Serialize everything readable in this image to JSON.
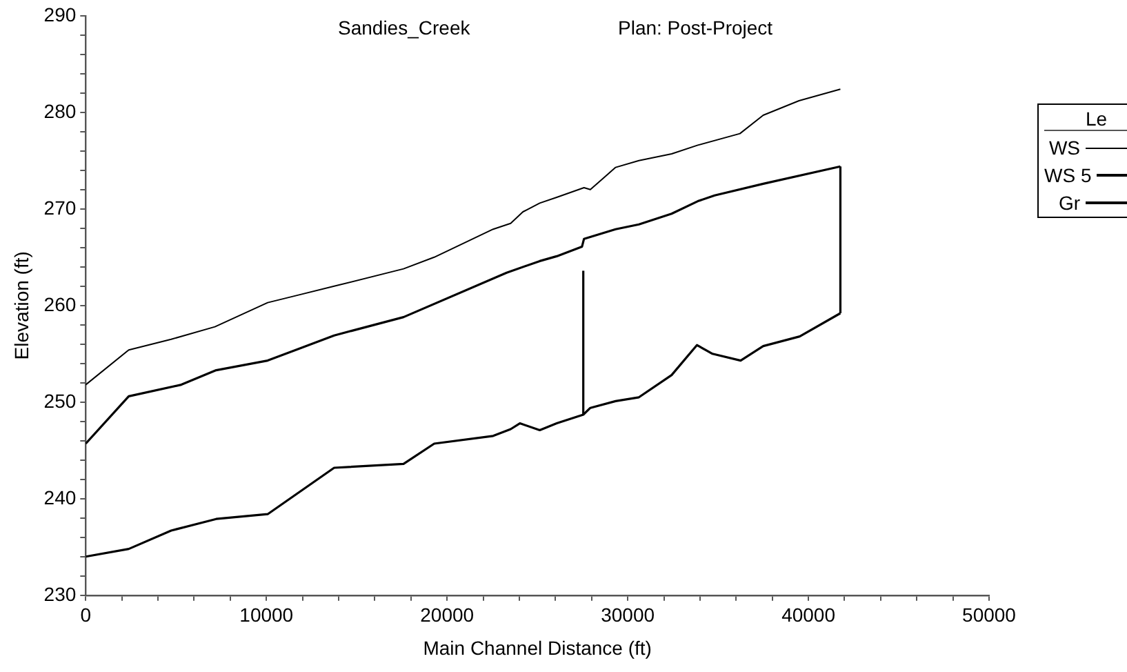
{
  "chart_data": {
    "type": "line",
    "title": "Sandies_Creek",
    "subtitle": "Plan: Post-Project",
    "xlabel": "Main Channel Distance (ft)",
    "ylabel": "Elevation (ft)",
    "legend_title": "Le",
    "legend": "right",
    "marker": "none",
    "line_style": "solid",
    "xlim": [
      0,
      50000
    ],
    "ylim": [
      230,
      290
    ],
    "xticks": [
      0,
      {
        "value": 2000,
        "label": null
      },
      {
        "value": 4000,
        "label": null
      },
      {
        "value": 6000,
        "label": null
      },
      {
        "value": 8000,
        "label": null
      },
      10000,
      {
        "value": 12000,
        "label": null
      },
      {
        "value": 14000,
        "label": null
      },
      {
        "value": 16000,
        "label": null
      },
      {
        "value": 18000,
        "label": null
      },
      20000,
      {
        "value": 22000,
        "label": null
      },
      {
        "value": 24000,
        "label": null
      },
      {
        "value": 26000,
        "label": null
      },
      {
        "value": 28000,
        "label": null
      },
      30000,
      {
        "value": 32000,
        "label": null
      },
      {
        "value": 34000,
        "label": null
      },
      {
        "value": 36000,
        "label": null
      },
      {
        "value": 38000,
        "label": null
      },
      40000,
      {
        "value": 42000,
        "label": null
      },
      {
        "value": 44000,
        "label": null
      },
      {
        "value": 46000,
        "label": null
      },
      {
        "value": 48000,
        "label": null
      },
      50000
    ],
    "yticks": [
      230,
      {
        "value": 232,
        "label": null
      },
      {
        "value": 234,
        "label": null
      },
      {
        "value": 236,
        "label": null
      },
      {
        "value": 238,
        "label": null
      },
      240,
      {
        "value": 242,
        "label": null
      },
      {
        "value": 244,
        "label": null
      },
      {
        "value": 246,
        "label": null
      },
      {
        "value": 248,
        "label": null
      },
      250,
      {
        "value": 252,
        "label": null
      },
      {
        "value": 254,
        "label": null
      },
      {
        "value": 256,
        "label": null
      },
      {
        "value": 258,
        "label": null
      },
      260,
      {
        "value": 262,
        "label": null
      },
      {
        "value": 264,
        "label": null
      },
      {
        "value": 266,
        "label": null
      },
      {
        "value": 268,
        "label": null
      },
      270,
      {
        "value": 272,
        "label": null
      },
      {
        "value": 274,
        "label": null
      },
      {
        "value": 276,
        "label": null
      },
      {
        "value": 278,
        "label": null
      },
      280,
      {
        "value": 282,
        "label": null
      },
      {
        "value": 284,
        "label": null
      },
      {
        "value": 286,
        "label": null
      },
      {
        "value": 288,
        "label": null
      },
      290
    ],
    "series": [
      {
        "name": "WS",
        "color": "#000000",
        "x": [
          0,
          2380,
          4730,
          7150,
          10070,
          11810,
          13750,
          17590,
          19290,
          22550,
          23520,
          24200,
          25130,
          26070,
          27580,
          27930,
          29330,
          30620,
          32430,
          33880,
          36210,
          37500,
          39480,
          41770
        ],
        "values": [
          251.8,
          255.4,
          256.5,
          257.8,
          260.3,
          261.1,
          262.0,
          263.8,
          265.0,
          267.9,
          268.5,
          269.7,
          270.6,
          271.2,
          272.2,
          272.0,
          274.3,
          275.0,
          275.7,
          276.6,
          277.8,
          279.7,
          281.2,
          282.4
        ]
      },
      {
        "name": "WS 5",
        "color": "#000000",
        "x": [
          0,
          2380,
          5290,
          7220,
          10070,
          13750,
          17590,
          23300,
          25130,
          26070,
          27470,
          27580,
          29330,
          30620,
          32430,
          33880,
          34810,
          37500,
          41770
        ],
        "values": [
          245.7,
          250.6,
          251.8,
          253.3,
          254.3,
          256.9,
          258.8,
          263.4,
          264.6,
          265.1,
          266.1,
          266.9,
          267.9,
          268.4,
          269.5,
          270.8,
          271.4,
          272.6,
          274.4
        ]
      },
      {
        "name": "Gr",
        "color": "#000000",
        "x": [
          0,
          2380,
          4730,
          7220,
          10070,
          13750,
          17590,
          19290,
          22550,
          23520,
          24030,
          25130,
          26070,
          27540,
          27930,
          29330,
          30620,
          32430,
          33830,
          34690,
          36250,
          37500,
          39520,
          41770
        ],
        "values": [
          234.0,
          234.8,
          236.7,
          237.9,
          238.4,
          243.2,
          243.6,
          245.7,
          246.5,
          247.2,
          247.8,
          247.1,
          247.8,
          248.7,
          249.4,
          250.1,
          250.5,
          252.8,
          255.9,
          255.0,
          254.3,
          255.8,
          256.8,
          259.2
        ]
      },
      {
        "color": "#000000",
        "x": [
          27540,
          27540
        ],
        "values": [
          248.7,
          263.6
        ]
      },
      {
        "color": "#000000",
        "x": [
          41770,
          41770
        ],
        "values": [
          259.2,
          274.4
        ]
      }
    ]
  }
}
